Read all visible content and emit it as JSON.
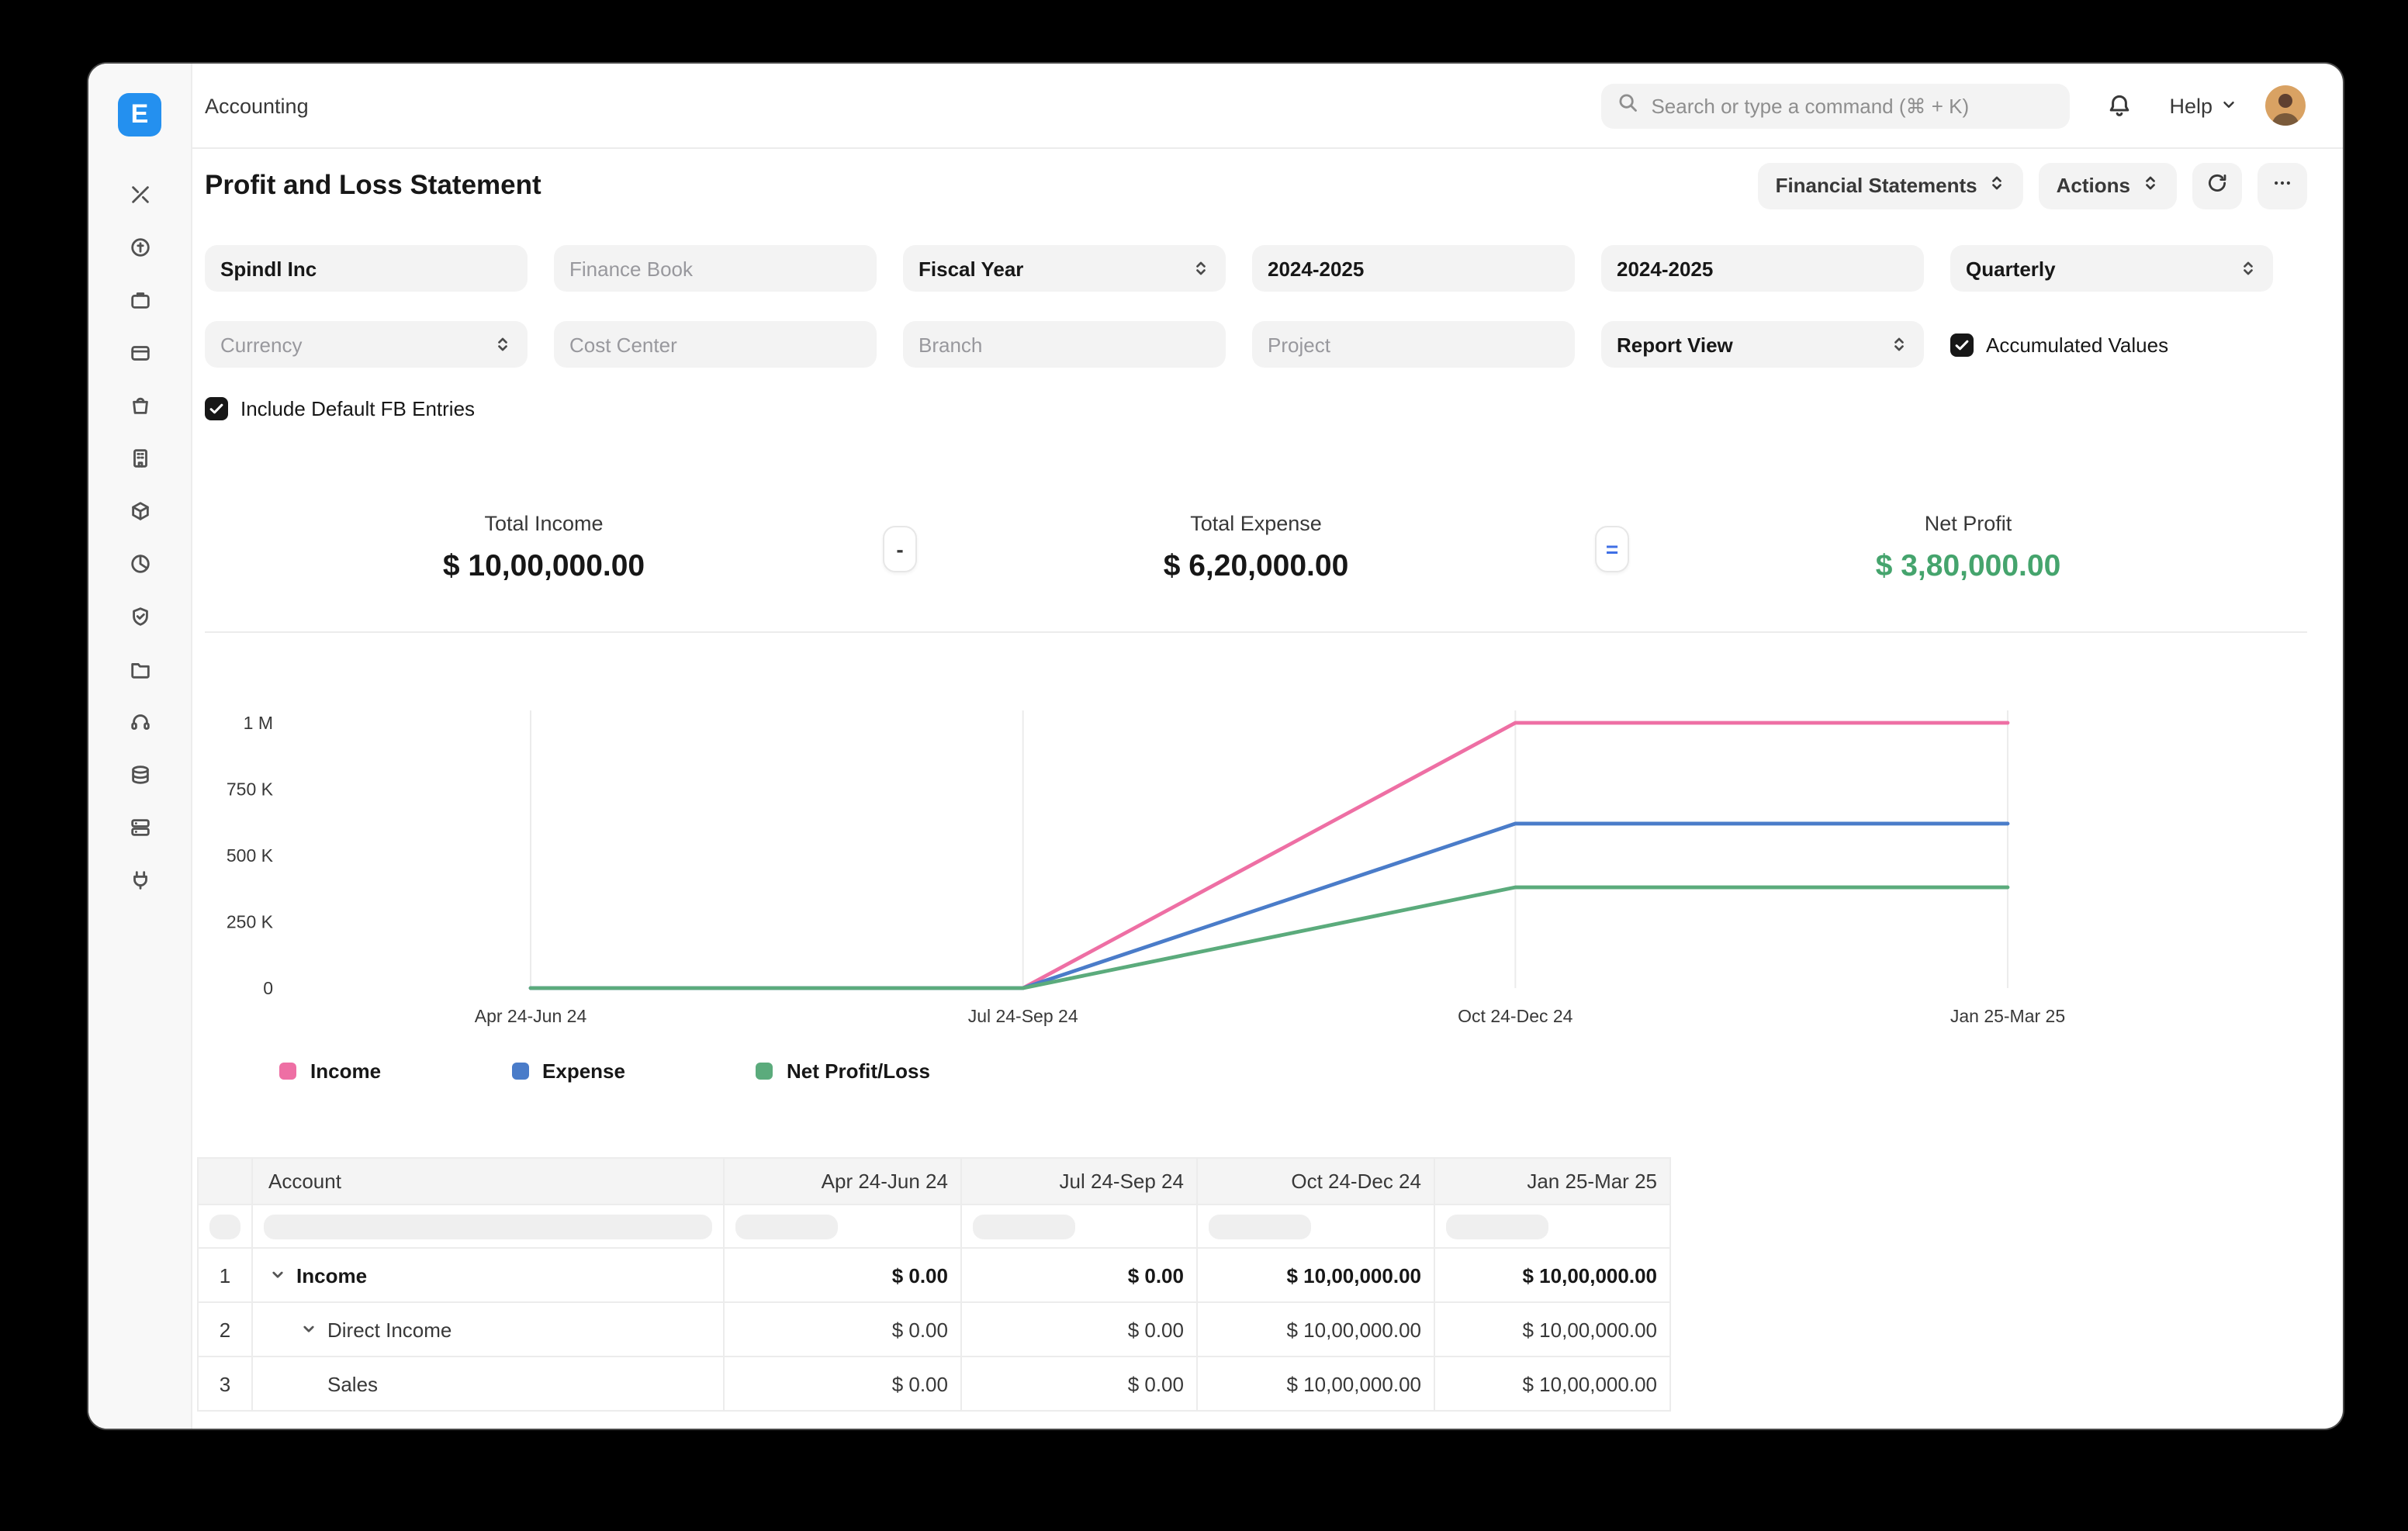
{
  "topbar": {
    "breadcrumb": "Accounting",
    "search_placeholder": "Search or type a command (⌘ + K)",
    "help_label": "Help"
  },
  "sidebar": {
    "logo_letter": "E",
    "icons": [
      "tools",
      "coins",
      "briefcase",
      "card",
      "shopping-bag",
      "building",
      "package",
      "pie-chart",
      "shield-check",
      "folder",
      "headset",
      "layers",
      "server",
      "plug"
    ]
  },
  "page": {
    "title": "Profit and Loss Statement",
    "report_group_button": "Financial Statements",
    "actions_button": "Actions"
  },
  "filters": {
    "company": "Spindl Inc",
    "finance_book_placeholder": "Finance Book",
    "period_basis": "Fiscal Year",
    "from_fiscal_year": "2024-2025",
    "to_fiscal_year": "2024-2025",
    "periodicity": "Quarterly",
    "currency_placeholder": "Currency",
    "cost_center_placeholder": "Cost Center",
    "branch_placeholder": "Branch",
    "project_placeholder": "Project",
    "report_view": "Report View",
    "accumulated_values": {
      "label": "Accumulated Values",
      "checked": true
    },
    "include_default_fb": {
      "label": "Include Default FB Entries",
      "checked": true
    }
  },
  "summary": {
    "items": [
      {
        "label": "Total Income",
        "value": "$ 10,00,000.00",
        "color": "#171717"
      },
      {
        "label": "Total Expense",
        "value": "$ 6,20,000.00",
        "color": "#171717"
      },
      {
        "label": "Net Profit",
        "value": "$ 3,80,000.00",
        "color": "#45a46d"
      }
    ],
    "operators": [
      "-",
      "="
    ]
  },
  "chart_data": {
    "type": "line",
    "title": "",
    "x": [
      "Apr 24-Jun 24",
      "Jul 24-Sep 24",
      "Oct 24-Dec 24",
      "Jan 25-Mar 25"
    ],
    "series": [
      {
        "name": "Income",
        "color": "#ee6fa4",
        "values": [
          0,
          0,
          1000000,
          1000000
        ]
      },
      {
        "name": "Expense",
        "color": "#4a7cc9",
        "values": [
          0,
          0,
          620000,
          620000
        ]
      },
      {
        "name": "Net Profit/Loss",
        "color": "#5bab7c",
        "values": [
          0,
          0,
          380000,
          380000
        ]
      }
    ],
    "ylim": [
      0,
      1000000
    ],
    "yticks": [
      {
        "value": 0,
        "label": "0"
      },
      {
        "value": 250000,
        "label": "250 K"
      },
      {
        "value": 500000,
        "label": "500 K"
      },
      {
        "value": 750000,
        "label": "750 K"
      },
      {
        "value": 1000000,
        "label": "1 M"
      }
    ],
    "grid": "vertical",
    "legend_position": "bottom"
  },
  "table": {
    "columns": [
      "Account",
      "Apr 24-Jun 24",
      "Jul 24-Sep 24",
      "Oct 24-Dec 24",
      "Jan 25-Mar 25"
    ],
    "rows": [
      {
        "index": "1",
        "account": "Income",
        "values": [
          "$ 0.00",
          "$ 0.00",
          "$ 10,00,000.00",
          "$ 10,00,000.00"
        ]
      },
      {
        "index": "2",
        "account": "Direct Income",
        "values": [
          "$ 0.00",
          "$ 0.00",
          "$ 10,00,000.00",
          "$ 10,00,000.00"
        ]
      },
      {
        "index": "3",
        "account": "Sales",
        "values": [
          "$ 0.00",
          "$ 0.00",
          "$ 10,00,000.00",
          "$ 10,00,000.00"
        ]
      }
    ]
  }
}
